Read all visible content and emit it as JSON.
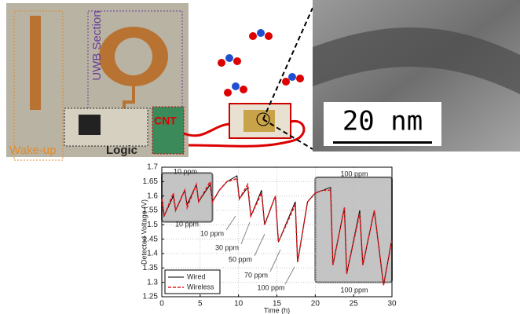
{
  "photo_labels": {
    "uwb": "UWB Section",
    "cnt": "CNT",
    "wake_up": "Wake-up",
    "logic": "Logic",
    "scale_bar": "20 nm"
  },
  "chart_data": {
    "type": "line",
    "xlabel": "Time (h)",
    "ylabel": "Detected Voltage (V)",
    "x": [
      0,
      0.3,
      1.5,
      1.8,
      3,
      3.3,
      4.5,
      4.8,
      6.3,
      6.6,
      7.5,
      8.5,
      9.8,
      10.1,
      11.2,
      11.6,
      13,
      13.4,
      14.8,
      15.2,
      17.4,
      17.7,
      19,
      20,
      21,
      22,
      22.3,
      23.8,
      24.1,
      25.8,
      26.2,
      27.7,
      28.9,
      30
    ],
    "series": [
      {
        "name": "Wired",
        "color": "#000000",
        "values": [
          1.6,
          1.53,
          1.6,
          1.55,
          1.62,
          1.57,
          1.64,
          1.58,
          1.64,
          1.58,
          1.62,
          1.65,
          1.67,
          1.59,
          1.63,
          1.53,
          1.62,
          1.5,
          1.6,
          1.44,
          1.58,
          1.37,
          1.58,
          1.61,
          1.62,
          1.63,
          1.36,
          1.56,
          1.33,
          1.55,
          1.36,
          1.55,
          1.29,
          1.45
        ]
      },
      {
        "name": "Wireless",
        "color": "#e41a1c",
        "values": [
          1.59,
          1.53,
          1.61,
          1.55,
          1.62,
          1.56,
          1.64,
          1.58,
          1.65,
          1.58,
          1.62,
          1.65,
          1.66,
          1.59,
          1.64,
          1.53,
          1.61,
          1.5,
          1.6,
          1.44,
          1.57,
          1.37,
          1.58,
          1.61,
          1.62,
          1.62,
          1.36,
          1.56,
          1.33,
          1.54,
          1.36,
          1.55,
          1.29,
          1.45
        ]
      }
    ],
    "xlim": [
      0,
      30
    ],
    "xticks": [
      0,
      5,
      10,
      15,
      20,
      25,
      30
    ],
    "ylim": [
      1.25,
      1.7
    ],
    "yticks": [
      1.25,
      1.3,
      1.35,
      1.4,
      1.45,
      1.5,
      1.55,
      1.6,
      1.65,
      1.7
    ],
    "grid": true,
    "legend": "lower left",
    "highlights": [
      {
        "xlim": [
          0,
          6.6
        ],
        "ylim": [
          1.51,
          1.68
        ]
      },
      {
        "xlim": [
          20,
          30
        ],
        "ylim": [
          1.3,
          1.665
        ]
      }
    ],
    "annotations": [
      "10 ppm",
      "10 ppm",
      "10 ppm",
      "30 ppm",
      "50 ppm",
      "70 ppm",
      "100 ppm",
      "100 ppm",
      "100 ppm"
    ]
  }
}
